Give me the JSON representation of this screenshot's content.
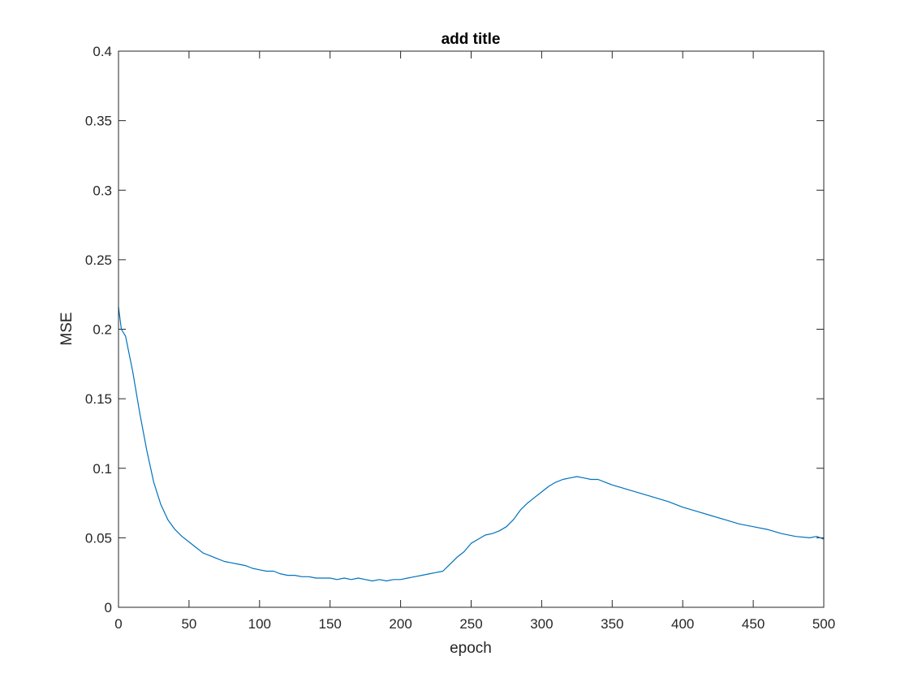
{
  "chart_data": {
    "type": "line",
    "title": "add title",
    "xlabel": "epoch",
    "ylabel": "MSE",
    "xlim": [
      0,
      500
    ],
    "ylim": [
      0,
      0.4
    ],
    "xticks": [
      0,
      50,
      100,
      150,
      200,
      250,
      300,
      350,
      400,
      450,
      500
    ],
    "yticks": [
      0,
      0.05,
      0.1,
      0.15,
      0.2,
      0.25,
      0.3,
      0.35,
      0.4
    ],
    "xtick_labels": [
      "0",
      "50",
      "100",
      "150",
      "200",
      "250",
      "300",
      "350",
      "400",
      "450",
      "500"
    ],
    "ytick_labels": [
      "0",
      "0.05",
      "0.1",
      "0.15",
      "0.2",
      "0.25",
      "0.3",
      "0.35",
      "0.4"
    ],
    "grid": false,
    "series": [
      {
        "color": "#0072bd",
        "x": [
          0,
          2,
          5,
          10,
          15,
          20,
          25,
          30,
          35,
          40,
          45,
          50,
          55,
          60,
          65,
          70,
          75,
          80,
          85,
          90,
          95,
          100,
          105,
          110,
          115,
          120,
          125,
          130,
          135,
          140,
          145,
          150,
          155,
          160,
          165,
          170,
          175,
          180,
          185,
          190,
          195,
          200,
          205,
          210,
          215,
          220,
          225,
          230,
          235,
          240,
          245,
          250,
          255,
          260,
          265,
          270,
          275,
          280,
          285,
          290,
          295,
          300,
          305,
          310,
          315,
          320,
          325,
          330,
          335,
          340,
          345,
          350,
          360,
          370,
          380,
          390,
          400,
          410,
          420,
          430,
          440,
          450,
          460,
          470,
          480,
          490,
          495,
          500
        ],
        "y": [
          0.216,
          0.2,
          0.195,
          0.17,
          0.14,
          0.113,
          0.09,
          0.074,
          0.063,
          0.056,
          0.051,
          0.047,
          0.043,
          0.039,
          0.037,
          0.035,
          0.033,
          0.032,
          0.031,
          0.03,
          0.028,
          0.027,
          0.026,
          0.026,
          0.024,
          0.023,
          0.023,
          0.022,
          0.022,
          0.021,
          0.021,
          0.021,
          0.02,
          0.021,
          0.02,
          0.021,
          0.02,
          0.019,
          0.02,
          0.019,
          0.02,
          0.02,
          0.021,
          0.022,
          0.023,
          0.024,
          0.025,
          0.026,
          0.031,
          0.036,
          0.04,
          0.046,
          0.049,
          0.052,
          0.053,
          0.055,
          0.058,
          0.063,
          0.07,
          0.075,
          0.079,
          0.083,
          0.087,
          0.09,
          0.092,
          0.093,
          0.094,
          0.093,
          0.092,
          0.092,
          0.09,
          0.088,
          0.085,
          0.082,
          0.079,
          0.076,
          0.072,
          0.069,
          0.066,
          0.063,
          0.06,
          0.058,
          0.056,
          0.053,
          0.051,
          0.05,
          0.051,
          0.049
        ]
      }
    ]
  }
}
